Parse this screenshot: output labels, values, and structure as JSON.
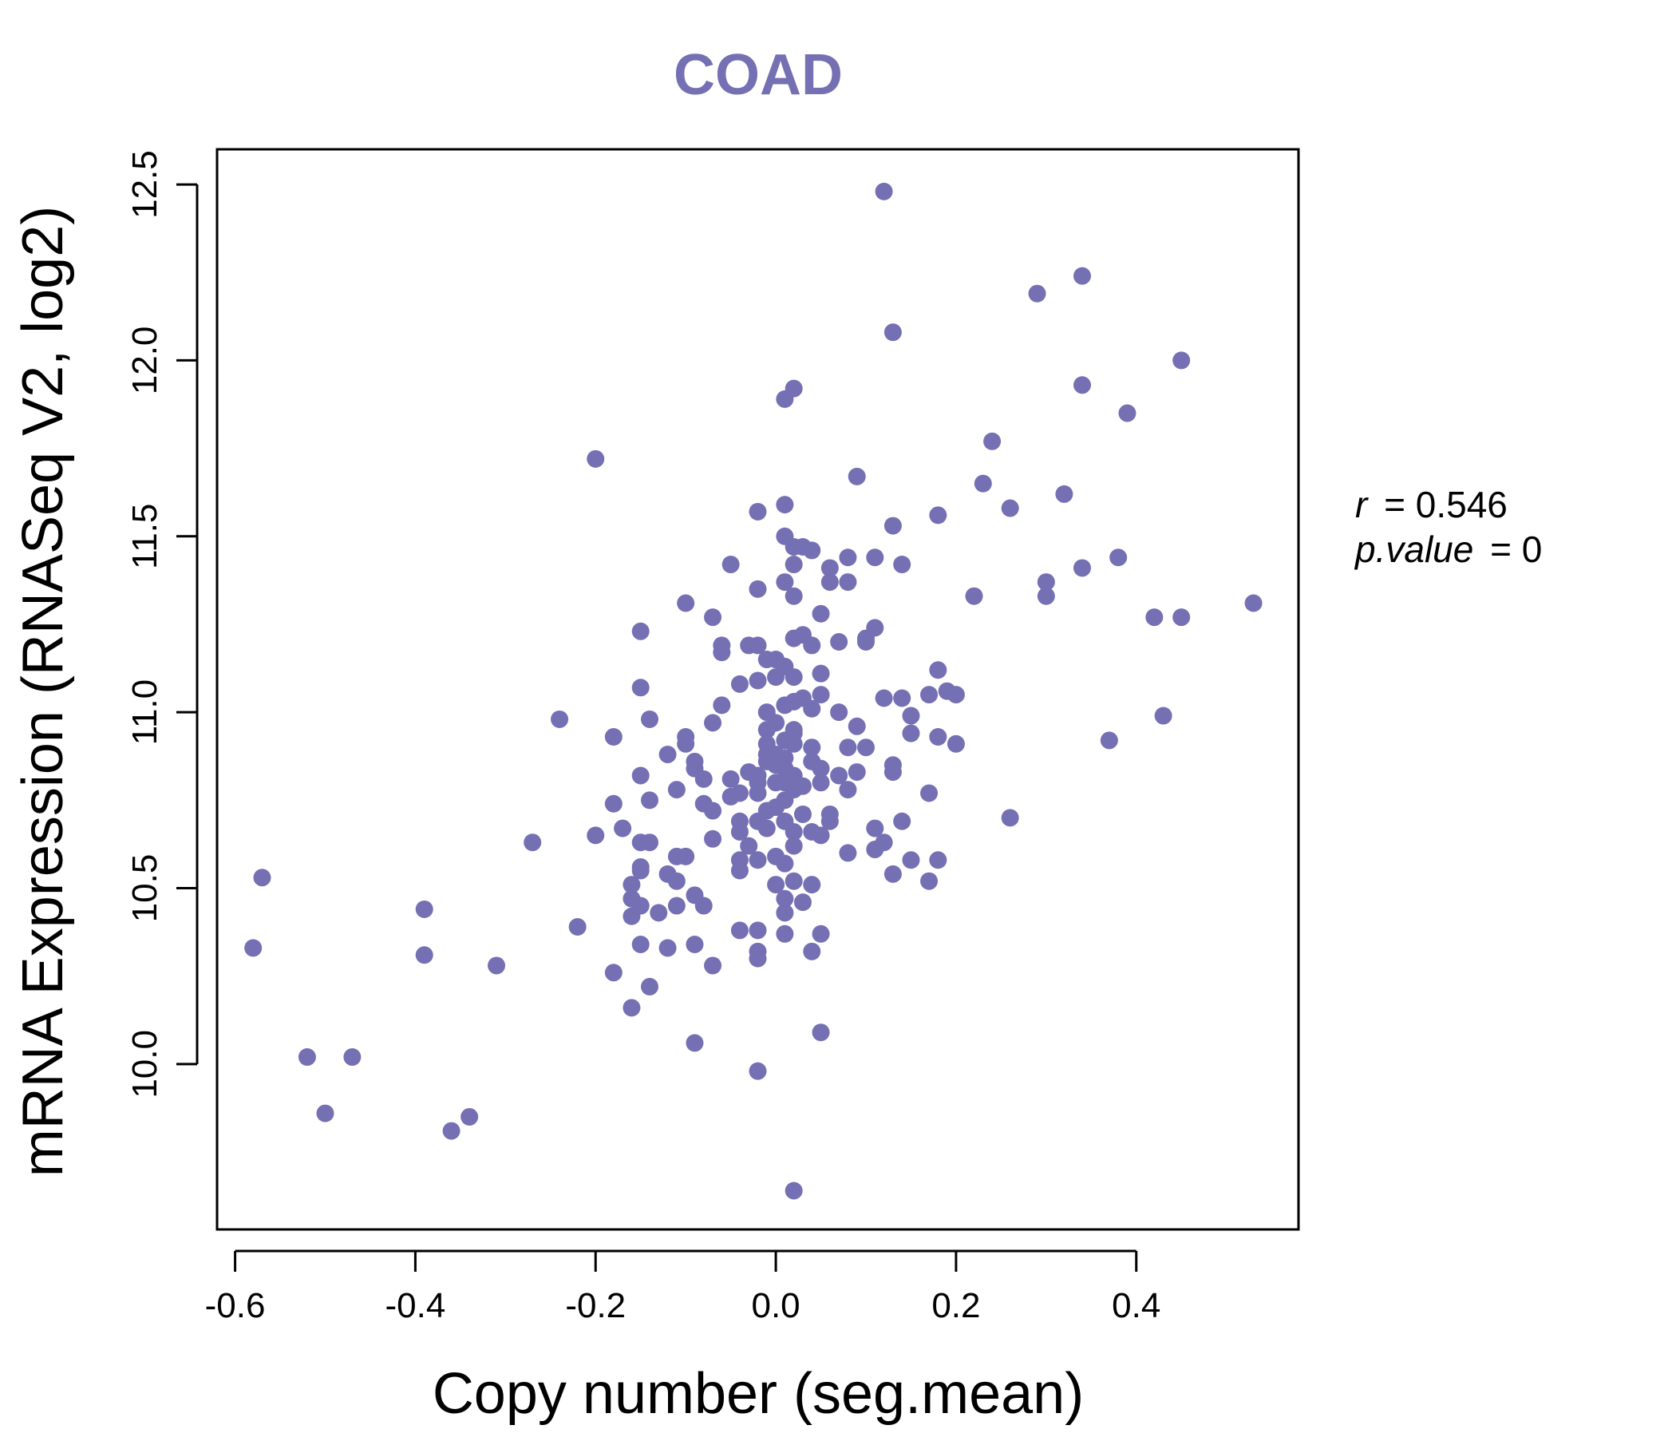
{
  "chart_data": {
    "type": "scatter",
    "title": "COAD",
    "xlabel": "Copy number (seg.mean)",
    "ylabel": "mRNA Expression (RNASeq V2, log2)",
    "xlim": [
      -0.62,
      0.58
    ],
    "ylim": [
      9.53,
      12.6
    ],
    "xticks": [
      -0.6,
      -0.4,
      -0.2,
      0.0,
      0.2,
      0.4
    ],
    "xtick_labels": [
      "-0.6",
      "-0.4",
      "-0.2",
      "0.0",
      "0.2",
      "0.4"
    ],
    "yticks": [
      10.0,
      10.5,
      11.0,
      11.5,
      12.0,
      12.5
    ],
    "ytick_labels": [
      "10.0",
      "10.5",
      "11.0",
      "11.5",
      "12.0",
      "12.5"
    ],
    "grid": false,
    "color": "#7570b3",
    "stats": {
      "r_label": "r",
      "r_value": "0.546",
      "p_label": "p.value",
      "p_value": "0"
    },
    "points": [
      [
        -0.58,
        10.33
      ],
      [
        -0.57,
        10.53
      ],
      [
        -0.52,
        10.02
      ],
      [
        -0.5,
        9.86
      ],
      [
        -0.47,
        10.02
      ],
      [
        -0.39,
        10.31
      ],
      [
        -0.39,
        10.44
      ],
      [
        -0.36,
        9.81
      ],
      [
        -0.34,
        9.85
      ],
      [
        -0.31,
        10.28
      ],
      [
        -0.27,
        10.63
      ],
      [
        -0.24,
        10.98
      ],
      [
        -0.22,
        10.39
      ],
      [
        -0.2,
        11.72
      ],
      [
        -0.2,
        10.65
      ],
      [
        -0.18,
        10.93
      ],
      [
        -0.18,
        10.74
      ],
      [
        -0.18,
        10.26
      ],
      [
        -0.17,
        10.67
      ],
      [
        -0.16,
        10.51
      ],
      [
        -0.16,
        10.47
      ],
      [
        -0.16,
        10.42
      ],
      [
        -0.16,
        10.16
      ],
      [
        -0.15,
        10.55
      ],
      [
        -0.15,
        11.23
      ],
      [
        -0.15,
        11.07
      ],
      [
        -0.15,
        10.82
      ],
      [
        -0.15,
        10.63
      ],
      [
        -0.15,
        10.56
      ],
      [
        -0.15,
        10.45
      ],
      [
        -0.15,
        10.34
      ],
      [
        -0.14,
        10.22
      ],
      [
        -0.14,
        10.98
      ],
      [
        -0.14,
        10.63
      ],
      [
        -0.14,
        10.75
      ],
      [
        -0.13,
        10.43
      ],
      [
        -0.12,
        10.88
      ],
      [
        -0.12,
        10.54
      ],
      [
        -0.12,
        10.33
      ],
      [
        -0.11,
        10.78
      ],
      [
        -0.11,
        10.59
      ],
      [
        -0.11,
        10.52
      ],
      [
        -0.11,
        10.45
      ],
      [
        -0.1,
        10.93
      ],
      [
        -0.1,
        10.91
      ],
      [
        -0.1,
        10.59
      ],
      [
        -0.1,
        11.31
      ],
      [
        -0.09,
        10.86
      ],
      [
        -0.09,
        10.84
      ],
      [
        -0.09,
        10.48
      ],
      [
        -0.09,
        10.34
      ],
      [
        -0.09,
        10.06
      ],
      [
        -0.08,
        10.81
      ],
      [
        -0.08,
        10.74
      ],
      [
        -0.08,
        10.45
      ],
      [
        -0.07,
        10.97
      ],
      [
        -0.07,
        10.72
      ],
      [
        -0.07,
        11.27
      ],
      [
        -0.07,
        10.64
      ],
      [
        -0.07,
        10.28
      ],
      [
        -0.06,
        11.17
      ],
      [
        -0.06,
        11.02
      ],
      [
        -0.06,
        11.19
      ],
      [
        -0.05,
        10.81
      ],
      [
        -0.05,
        10.76
      ],
      [
        -0.05,
        11.42
      ],
      [
        -0.04,
        10.69
      ],
      [
        -0.04,
        10.58
      ],
      [
        -0.04,
        11.08
      ],
      [
        -0.04,
        10.77
      ],
      [
        -0.04,
        10.66
      ],
      [
        -0.04,
        10.55
      ],
      [
        -0.04,
        10.38
      ],
      [
        -0.03,
        11.19
      ],
      [
        -0.03,
        10.83
      ],
      [
        -0.03,
        10.62
      ],
      [
        -0.02,
        10.82
      ],
      [
        -0.02,
        10.8
      ],
      [
        -0.02,
        10.77
      ],
      [
        -0.02,
        10.69
      ],
      [
        -0.02,
        10.58
      ],
      [
        -0.02,
        10.38
      ],
      [
        -0.02,
        10.32
      ],
      [
        -0.02,
        10.3
      ],
      [
        -0.02,
        9.98
      ],
      [
        -0.02,
        11.57
      ],
      [
        -0.02,
        11.35
      ],
      [
        -0.02,
        11.19
      ],
      [
        -0.02,
        11.09
      ],
      [
        -0.01,
        10.91
      ],
      [
        -0.01,
        10.88
      ],
      [
        -0.01,
        10.86
      ],
      [
        -0.01,
        10.95
      ],
      [
        -0.01,
        11.0
      ],
      [
        -0.01,
        10.72
      ],
      [
        -0.01,
        10.67
      ],
      [
        -0.01,
        11.15
      ],
      [
        0.0,
        10.88
      ],
      [
        0.0,
        10.85
      ],
      [
        0.0,
        10.8
      ],
      [
        0.0,
        10.73
      ],
      [
        0.0,
        10.59
      ],
      [
        0.0,
        10.51
      ],
      [
        0.0,
        11.1
      ],
      [
        0.0,
        11.15
      ],
      [
        0.0,
        10.97
      ],
      [
        0.01,
        10.92
      ],
      [
        0.01,
        10.87
      ],
      [
        0.01,
        10.84
      ],
      [
        0.01,
        10.8
      ],
      [
        0.01,
        10.75
      ],
      [
        0.01,
        10.69
      ],
      [
        0.01,
        10.57
      ],
      [
        0.01,
        10.47
      ],
      [
        0.01,
        10.43
      ],
      [
        0.01,
        10.37
      ],
      [
        0.01,
        11.5
      ],
      [
        0.01,
        11.37
      ],
      [
        0.01,
        11.13
      ],
      [
        0.01,
        11.02
      ],
      [
        0.01,
        11.89
      ],
      [
        0.01,
        11.59
      ],
      [
        0.02,
        10.95
      ],
      [
        0.02,
        10.91
      ],
      [
        0.02,
        10.82
      ],
      [
        0.02,
        10.78
      ],
      [
        0.02,
        10.66
      ],
      [
        0.02,
        10.62
      ],
      [
        0.02,
        10.52
      ],
      [
        0.02,
        9.64
      ],
      [
        0.02,
        11.92
      ],
      [
        0.02,
        11.47
      ],
      [
        0.02,
        11.42
      ],
      [
        0.02,
        11.33
      ],
      [
        0.02,
        11.21
      ],
      [
        0.02,
        11.1
      ],
      [
        0.02,
        11.03
      ],
      [
        0.02,
        10.94
      ],
      [
        0.03,
        10.79
      ],
      [
        0.03,
        10.71
      ],
      [
        0.03,
        10.46
      ],
      [
        0.03,
        11.47
      ],
      [
        0.03,
        11.22
      ],
      [
        0.03,
        11.04
      ],
      [
        0.04,
        10.9
      ],
      [
        0.04,
        10.86
      ],
      [
        0.04,
        10.66
      ],
      [
        0.04,
        10.51
      ],
      [
        0.04,
        10.32
      ],
      [
        0.04,
        11.46
      ],
      [
        0.04,
        11.19
      ],
      [
        0.04,
        11.01
      ],
      [
        0.05,
        10.8
      ],
      [
        0.05,
        10.65
      ],
      [
        0.05,
        10.37
      ],
      [
        0.05,
        10.09
      ],
      [
        0.05,
        11.28
      ],
      [
        0.05,
        11.11
      ],
      [
        0.05,
        11.05
      ],
      [
        0.05,
        10.84
      ],
      [
        0.06,
        11.41
      ],
      [
        0.06,
        11.37
      ],
      [
        0.06,
        10.71
      ],
      [
        0.06,
        10.69
      ],
      [
        0.07,
        11.2
      ],
      [
        0.07,
        11.0
      ],
      [
        0.07,
        10.82
      ],
      [
        0.08,
        10.9
      ],
      [
        0.08,
        10.78
      ],
      [
        0.08,
        10.6
      ],
      [
        0.08,
        11.44
      ],
      [
        0.08,
        11.37
      ],
      [
        0.09,
        10.83
      ],
      [
        0.09,
        11.67
      ],
      [
        0.09,
        10.96
      ],
      [
        0.1,
        10.9
      ],
      [
        0.1,
        11.21
      ],
      [
        0.1,
        11.2
      ],
      [
        0.11,
        11.24
      ],
      [
        0.11,
        10.61
      ],
      [
        0.11,
        10.67
      ],
      [
        0.11,
        11.44
      ],
      [
        0.12,
        12.48
      ],
      [
        0.12,
        10.63
      ],
      [
        0.12,
        11.04
      ],
      [
        0.13,
        10.85
      ],
      [
        0.13,
        10.83
      ],
      [
        0.13,
        10.54
      ],
      [
        0.13,
        11.53
      ],
      [
        0.13,
        12.08
      ],
      [
        0.14,
        11.42
      ],
      [
        0.14,
        10.69
      ],
      [
        0.14,
        11.04
      ],
      [
        0.15,
        10.58
      ],
      [
        0.15,
        10.94
      ],
      [
        0.15,
        10.99
      ],
      [
        0.17,
        10.77
      ],
      [
        0.17,
        10.52
      ],
      [
        0.17,
        11.05
      ],
      [
        0.18,
        11.12
      ],
      [
        0.18,
        10.58
      ],
      [
        0.18,
        10.93
      ],
      [
        0.18,
        11.56
      ],
      [
        0.19,
        11.06
      ],
      [
        0.2,
        11.05
      ],
      [
        0.2,
        10.91
      ],
      [
        0.22,
        11.33
      ],
      [
        0.23,
        11.65
      ],
      [
        0.24,
        11.77
      ],
      [
        0.26,
        11.58
      ],
      [
        0.26,
        10.7
      ],
      [
        0.29,
        12.19
      ],
      [
        0.3,
        11.37
      ],
      [
        0.3,
        11.33
      ],
      [
        0.32,
        11.62
      ],
      [
        0.34,
        12.24
      ],
      [
        0.34,
        11.93
      ],
      [
        0.34,
        11.41
      ],
      [
        0.37,
        10.92
      ],
      [
        0.38,
        11.44
      ],
      [
        0.39,
        11.85
      ],
      [
        0.42,
        11.27
      ],
      [
        0.43,
        10.99
      ],
      [
        0.45,
        12.0
      ],
      [
        0.45,
        11.27
      ],
      [
        0.53,
        11.31
      ]
    ]
  }
}
